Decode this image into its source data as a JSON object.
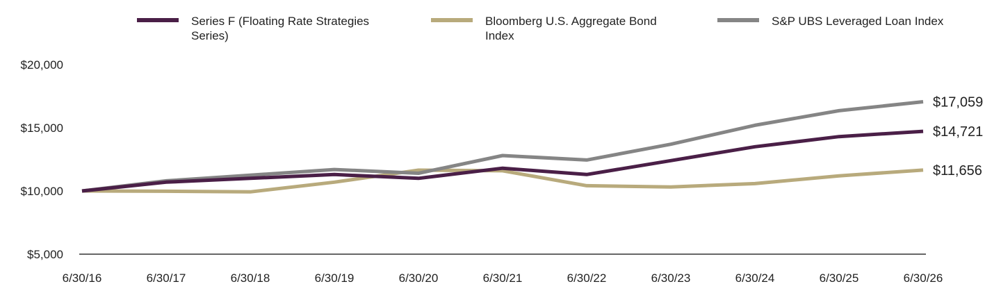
{
  "chart_data": {
    "type": "line",
    "x": [
      "6/30/16",
      "6/30/17",
      "6/30/18",
      "6/30/19",
      "6/30/20",
      "6/30/21",
      "6/30/22",
      "6/30/23",
      "6/30/24",
      "6/30/25",
      "6/30/26"
    ],
    "yticks": [
      "$5,000",
      "$10,000",
      "$15,000",
      "$20,000"
    ],
    "ylim": [
      5000,
      20000
    ],
    "grid": false,
    "legend_position": "top",
    "series": [
      {
        "name": "Series F (Floating Rate Strategies Series)",
        "color": "#4a1f47",
        "values": [
          10000,
          10700,
          11000,
          11300,
          11000,
          11800,
          11300,
          12400,
          13500,
          14300,
          14721
        ],
        "end_label": "$14,721"
      },
      {
        "name": "Bloomberg U.S. Aggregate Bond Index",
        "color": "#b8aa7c",
        "values": [
          10000,
          9980,
          9930,
          10700,
          11650,
          11600,
          10420,
          10320,
          10580,
          11200,
          11656
        ],
        "end_label": "$11,656"
      },
      {
        "name": "S&P UBS Leveraged Loan Index",
        "color": "#858585",
        "values": [
          10000,
          10800,
          11250,
          11700,
          11400,
          12800,
          12450,
          13700,
          15200,
          16350,
          17059
        ],
        "end_label": "$17,059"
      }
    ]
  }
}
